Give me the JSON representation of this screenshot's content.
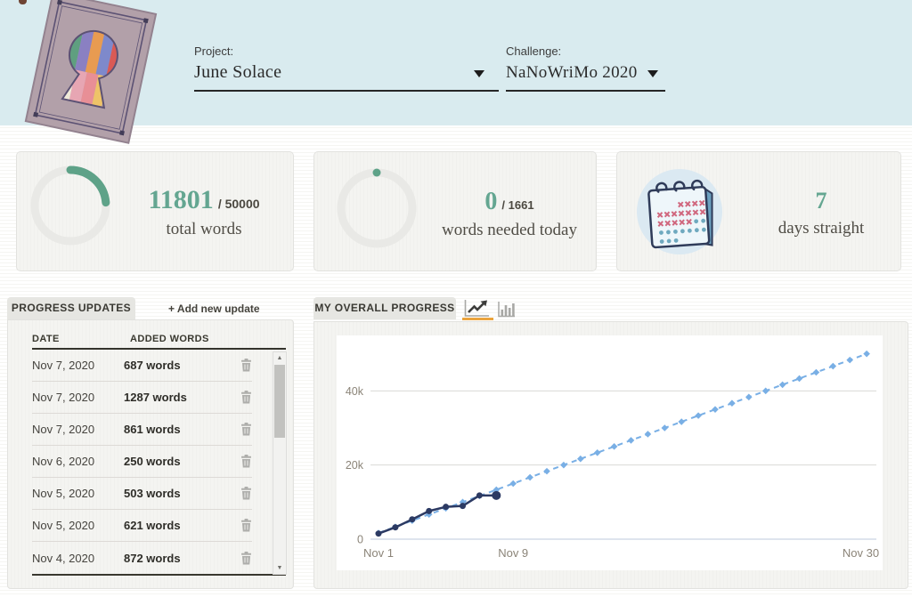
{
  "header": {
    "project_label": "Project:",
    "project_value": "June Solace",
    "challenge_label": "Challenge:",
    "challenge_value": "NaNoWriMo 2020"
  },
  "stats": [
    {
      "value": "11801",
      "total": "/ 50000",
      "caption": "total words",
      "ring_percent": 23.6
    },
    {
      "value": "0",
      "total": "/ 1661",
      "caption": "words needed today",
      "ring_percent": 0
    },
    {
      "value": "7",
      "caption": "days straight",
      "icon": "calendar-icon"
    }
  ],
  "progress_updates": {
    "tab_label": "PROGRESS UPDATES",
    "add_link": "+ Add new update",
    "columns": [
      "DATE",
      "ADDED WORDS"
    ],
    "rows": [
      {
        "date": "Nov 7, 2020",
        "words": "687 words"
      },
      {
        "date": "Nov 7, 2020",
        "words": "1287 words"
      },
      {
        "date": "Nov 7, 2020",
        "words": "861 words"
      },
      {
        "date": "Nov 6, 2020",
        "words": "250 words"
      },
      {
        "date": "Nov 5, 2020",
        "words": "503 words"
      },
      {
        "date": "Nov 5, 2020",
        "words": "621 words"
      },
      {
        "date": "Nov 4, 2020",
        "words": "872 words"
      }
    ]
  },
  "chart_panel": {
    "tab_label": "MY OVERALL PROGRESS",
    "toggles": [
      "line-chart-icon",
      "bar-chart-icon"
    ],
    "active_toggle": "line-chart-icon"
  },
  "chart_data": {
    "type": "line",
    "title": "My Overall Progress",
    "x_axis": {
      "ticks": [
        {
          "day": 1,
          "label": "Nov 1"
        },
        {
          "day": 9,
          "label": "Nov 9"
        },
        {
          "day": 30,
          "label": "Nov 30"
        }
      ],
      "range_days": [
        1,
        30
      ]
    },
    "y_axis": {
      "ticks": [
        {
          "value": 0,
          "label": "0"
        },
        {
          "value": 20000,
          "label": "20k"
        },
        {
          "value": 40000,
          "label": "40k"
        }
      ],
      "ylim": [
        0,
        52000
      ]
    },
    "grid": true,
    "legend": false,
    "series": [
      {
        "name": "target-pace",
        "style": "dashed",
        "marker": "diamond",
        "color": "#79afe5",
        "days": [
          1,
          2,
          3,
          4,
          5,
          6,
          7,
          8,
          9,
          10,
          11,
          12,
          13,
          14,
          15,
          16,
          17,
          18,
          19,
          20,
          21,
          22,
          23,
          24,
          25,
          26,
          27,
          28,
          29,
          30
        ],
        "values": [
          1667,
          3333,
          5000,
          6667,
          8333,
          10000,
          11667,
          13333,
          15000,
          16667,
          18333,
          20000,
          21667,
          23333,
          25000,
          26667,
          28333,
          30000,
          31667,
          33333,
          35000,
          36667,
          38333,
          40000,
          41667,
          43333,
          45000,
          46667,
          48333,
          50000
        ]
      },
      {
        "name": "actual-progress",
        "style": "solid",
        "marker": "circle",
        "color": "#2c3a63",
        "days": [
          1,
          2,
          3,
          4,
          5,
          6,
          7,
          8
        ],
        "values": [
          1512,
          3192,
          5352,
          7592,
          8716,
          8966,
          11801,
          11801
        ]
      }
    ]
  },
  "colors": {
    "accent_teal": "#5ea288",
    "ring_track": "#e9e9e6",
    "header_bg": "#d9ebef",
    "tab_underline_orange": "#eaa43e",
    "grid_line": "#d9d9d6",
    "zero_line": "#bdc8de",
    "axis_label": "#8b8478",
    "trash_gray": "#aeaeab"
  },
  "icons": {
    "project_dropdown": "chevron-down-icon",
    "challenge_dropdown": "chevron-down-icon",
    "delete_row": "trash-icon",
    "scroll_up": "▲",
    "scroll_down": "▼"
  }
}
